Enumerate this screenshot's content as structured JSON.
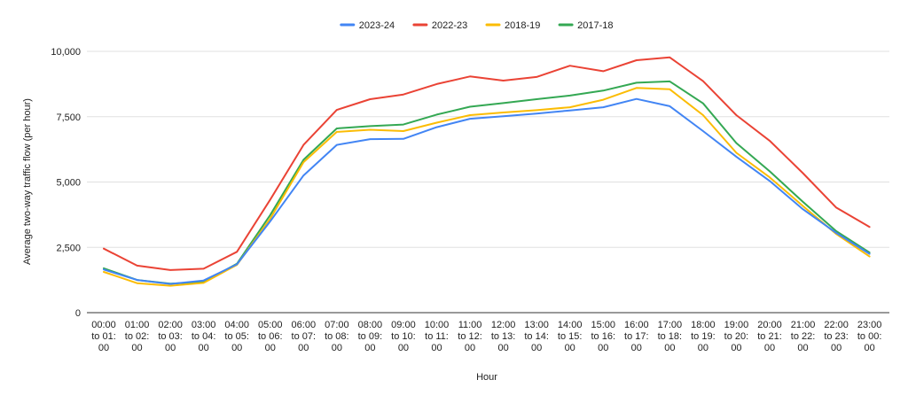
{
  "chart_data": {
    "type": "line",
    "title": "",
    "xlabel": "Hour",
    "ylabel": "Average two-way traffic flow (per hour)",
    "ylim": [
      0,
      10000
    ],
    "yticks": [
      "0",
      "2,500",
      "5,000",
      "7,500",
      "10,000"
    ],
    "ytick_values": [
      0,
      2500,
      5000,
      7500,
      10000
    ],
    "grid": true,
    "legend_position": "top-center",
    "categories": [
      [
        "00:00",
        "to 01:",
        "00"
      ],
      [
        "01:00",
        "to 02:",
        "00"
      ],
      [
        "02:00",
        "to 03:",
        "00"
      ],
      [
        "03:00",
        "to 04:",
        "00"
      ],
      [
        "04:00",
        "to 05:",
        "00"
      ],
      [
        "05:00",
        "to 06:",
        "00"
      ],
      [
        "06:00",
        "to 07:",
        "00"
      ],
      [
        "07:00",
        "to 08:",
        "00"
      ],
      [
        "08:00",
        "to 09:",
        "00"
      ],
      [
        "09:00",
        "to 10:",
        "00"
      ],
      [
        "10:00",
        "to 11:",
        "00"
      ],
      [
        "11:00",
        "to 12:",
        "00"
      ],
      [
        "12:00",
        "to 13:",
        "00"
      ],
      [
        "13:00",
        "to 14:",
        "00"
      ],
      [
        "14:00",
        "to 15:",
        "00"
      ],
      [
        "15:00",
        "to 16:",
        "00"
      ],
      [
        "16:00",
        "to 17:",
        "00"
      ],
      [
        "17:00",
        "to 18:",
        "00"
      ],
      [
        "18:00",
        "to 19:",
        "00"
      ],
      [
        "19:00",
        "to 20:",
        "00"
      ],
      [
        "20:00",
        "to 21:",
        "00"
      ],
      [
        "21:00",
        "to 22:",
        "00"
      ],
      [
        "22:00",
        "to 23:",
        "00"
      ],
      [
        "23:00",
        "to 00:",
        "00"
      ]
    ],
    "series": [
      {
        "name": "2023-24",
        "color": "#4285f4",
        "values": [
          1650,
          1250,
          1100,
          1230,
          1850,
          3500,
          5250,
          6420,
          6640,
          6650,
          7100,
          7420,
          7520,
          7620,
          7740,
          7860,
          8180,
          7900,
          6950,
          5970,
          5040,
          3960,
          3050,
          2250
        ]
      },
      {
        "name": "2022-23",
        "color": "#ea4335",
        "values": [
          2450,
          1800,
          1630,
          1680,
          2330,
          4330,
          6420,
          7760,
          8170,
          8350,
          8750,
          9040,
          8880,
          9020,
          9450,
          9240,
          9660,
          9770,
          8860,
          7560,
          6580,
          5340,
          4020,
          3280
        ]
      },
      {
        "name": "2018-19",
        "color": "#fbbc04",
        "values": [
          1560,
          1130,
          1030,
          1140,
          1830,
          3600,
          5760,
          6920,
          7000,
          6950,
          7270,
          7560,
          7660,
          7750,
          7860,
          8150,
          8600,
          8550,
          7560,
          6120,
          5180,
          4080,
          3010,
          2150
        ]
      },
      {
        "name": "2017-18",
        "color": "#34a853",
        "values": [
          1700,
          1250,
          1110,
          1170,
          1870,
          3740,
          5850,
          7050,
          7140,
          7200,
          7580,
          7880,
          8020,
          8170,
          8310,
          8500,
          8800,
          8850,
          8010,
          6490,
          5410,
          4240,
          3120,
          2300
        ]
      }
    ]
  }
}
